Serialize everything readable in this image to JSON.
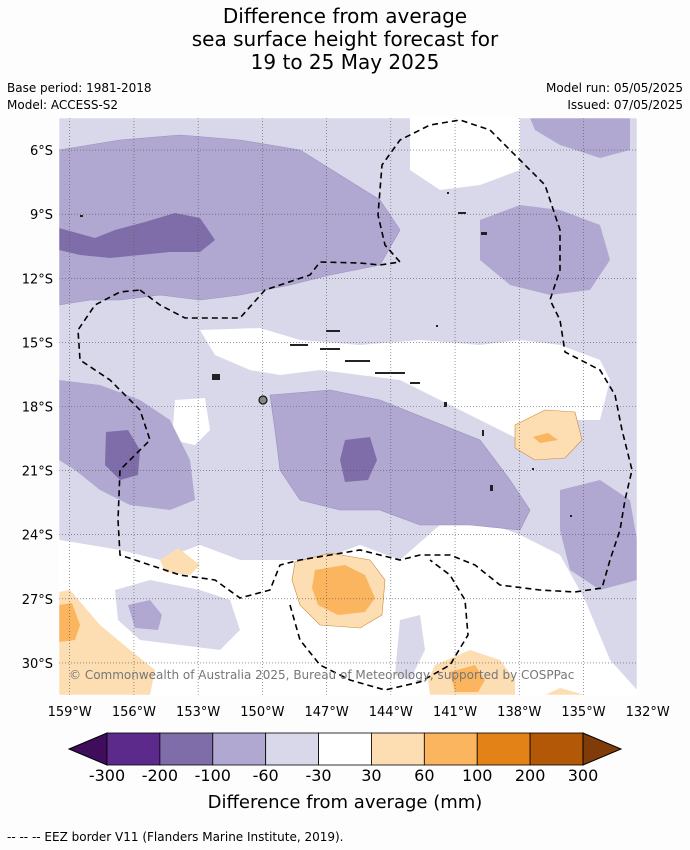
{
  "title": {
    "line1": "Difference from average",
    "line2": "sea surface height forecast for",
    "line3": "19 to 25 May 2025"
  },
  "meta": {
    "base_period": "Base period: 1981-2018",
    "model": "Model: ACCESS-S2",
    "model_run": "Model run: 05/05/2025",
    "issued": "Issued: 07/05/2025"
  },
  "copyright": "© Commonwealth of Australia 2025, Bureau of Meteorology, supported by COSPPac",
  "footer": "-- -- -- EEZ border V11 (Flanders Marine Institute, 2019).",
  "chart_data": {
    "type": "heatmap",
    "title": "Difference from average sea surface height forecast for 19 to 25 May 2025",
    "xlim": [
      -159.5,
      -132.5
    ],
    "ylim": [
      -31.5,
      -4.5
    ],
    "x_ticks": [
      "159°W",
      "156°W",
      "153°W",
      "150°W",
      "147°W",
      "144°W",
      "141°W",
      "138°W",
      "135°W",
      "132°W"
    ],
    "y_ticks": [
      "6°S",
      "9°S",
      "12°S",
      "15°S",
      "18°S",
      "21°S",
      "24°S",
      "27°S",
      "30°S"
    ],
    "grid": true,
    "colorbar": {
      "label": "Difference from average (mm)",
      "levels": [
        "-300",
        "-200",
        "-100",
        "-60",
        "-30",
        "30",
        "60",
        "100",
        "200",
        "300"
      ],
      "colors": [
        "#3f0d5c",
        "#5c2a8a",
        "#7f6daa",
        "#b0a8d0",
        "#d8d8ea",
        "#ffffff",
        "#fdddb2",
        "#fbb55f",
        "#e38216",
        "#b35806",
        "#7f3b08"
      ]
    },
    "regions": [
      {
        "level": "-60 to -30",
        "lon": [
          -159.5,
          -132.5
        ],
        "lat": [
          -31.5,
          -4.5
        ],
        "note": "broad background over northern and central domain"
      },
      {
        "level": "-100 to -60",
        "lon": [
          -159.5,
          -145.5
        ],
        "lat": [
          -13.5,
          -7.5
        ]
      },
      {
        "level": "-100 to -60",
        "lon": [
          -148.5,
          -136.5
        ],
        "lat": [
          -24.0,
          -17.5
        ]
      },
      {
        "level": "-100 to -60",
        "lon": [
          -159.5,
          -151.0
        ],
        "lat": [
          -23.0,
          -17.5
        ]
      },
      {
        "level": "-100 to -60",
        "lon": [
          -138.0,
          -133.0
        ],
        "lat": [
          -27.0,
          -21.5
        ]
      },
      {
        "level": "-100 to -60",
        "lon": [
          -136.0,
          -133.0
        ],
        "lat": [
          -8.5,
          -4.5
        ]
      },
      {
        "level": "-200 to -100",
        "lon": [
          -159.5,
          -153.5
        ],
        "lat": [
          -11.0,
          -9.5
        ]
      },
      {
        "level": "-200 to -100",
        "lon": [
          -145.5,
          -144.0
        ],
        "lat": [
          -21.5,
          -19.5
        ]
      },
      {
        "level": "-200 to -100",
        "lon": [
          -157.5,
          -156.0
        ],
        "lat": [
          -21.0,
          -19.0
        ]
      },
      {
        "level": "30 to 60",
        "lon": [
          -147.5,
          -143.0
        ],
        "lat": [
          -29.0,
          -25.5
        ]
      },
      {
        "level": "60 to 100",
        "lon": [
          -146.5,
          -144.0
        ],
        "lat": [
          -28.5,
          -26.5
        ]
      },
      {
        "level": "30 to 60",
        "lon": [
          -137.5,
          -134.5
        ],
        "lat": [
          -20.5,
          -18.0
        ]
      },
      {
        "level": "30 to 60",
        "lon": [
          -159.5,
          -156.5
        ],
        "lat": [
          -31.5,
          -27.5
        ]
      },
      {
        "level": "30 to 60",
        "lon": [
          -141.5,
          -137.5
        ],
        "lat": [
          -31.5,
          -29.5
        ]
      },
      {
        "level": "-30 to 30",
        "lon": [
          -148.0,
          -136.0
        ],
        "lat": [
          -17.5,
          -14.5
        ],
        "note": "near-average band across central domain"
      },
      {
        "level": "-30 to 30",
        "lon": [
          -159.5,
          -136.0
        ],
        "lat": [
          -31.5,
          -24.0
        ],
        "note": "near-average region in south"
      }
    ]
  }
}
